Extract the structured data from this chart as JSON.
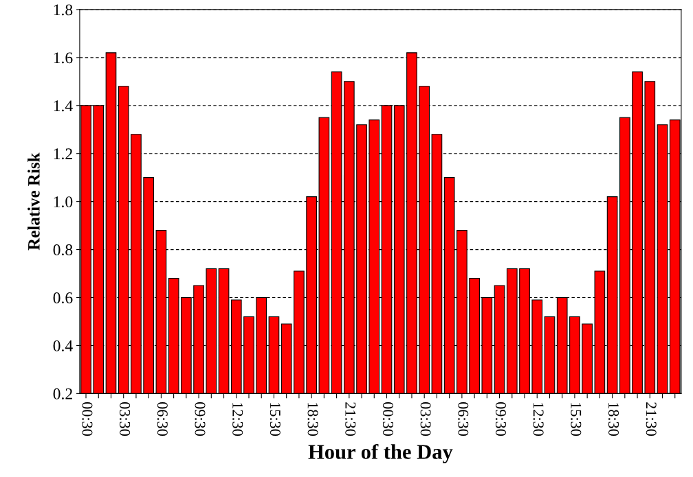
{
  "chart_data": {
    "type": "bar",
    "xlabel": "Hour of the Day",
    "ylabel": "Relative Risk",
    "categories": [
      "00:30",
      null,
      null,
      "03:30",
      null,
      null,
      "06:30",
      null,
      null,
      "09:30",
      null,
      null,
      "12:30",
      null,
      null,
      "15:30",
      null,
      null,
      "18:30",
      null,
      null,
      "21:30",
      null,
      null,
      "00:30",
      null,
      null,
      "03:30",
      null,
      null,
      "06:30",
      null,
      null,
      "09:30",
      null,
      null,
      "12:30",
      null,
      null,
      "15:30",
      null,
      null,
      "18:30",
      null,
      null,
      "21:30",
      null,
      null
    ],
    "values": [
      1.4,
      1.4,
      1.62,
      1.48,
      1.28,
      1.1,
      0.88,
      0.68,
      0.6,
      0.65,
      0.72,
      0.72,
      0.59,
      0.52,
      0.6,
      0.52,
      0.49,
      0.71,
      1.02,
      1.35,
      1.54,
      1.5,
      1.32,
      1.34,
      1.4,
      1.4,
      1.62,
      1.48,
      1.28,
      1.1,
      0.88,
      0.68,
      0.6,
      0.65,
      0.72,
      0.72,
      0.59,
      0.52,
      0.6,
      0.52,
      0.49,
      0.71,
      1.02,
      1.35,
      1.54,
      1.5,
      1.32,
      1.34
    ],
    "color": "#ff0000",
    "ylim": [
      0.2,
      1.8
    ],
    "yticks": [
      0.2,
      0.4,
      0.6,
      0.8,
      {
        "value": 1,
        "label": "1.0"
      },
      1.2,
      1.4,
      1.6,
      1.8
    ],
    "grid": "y"
  }
}
